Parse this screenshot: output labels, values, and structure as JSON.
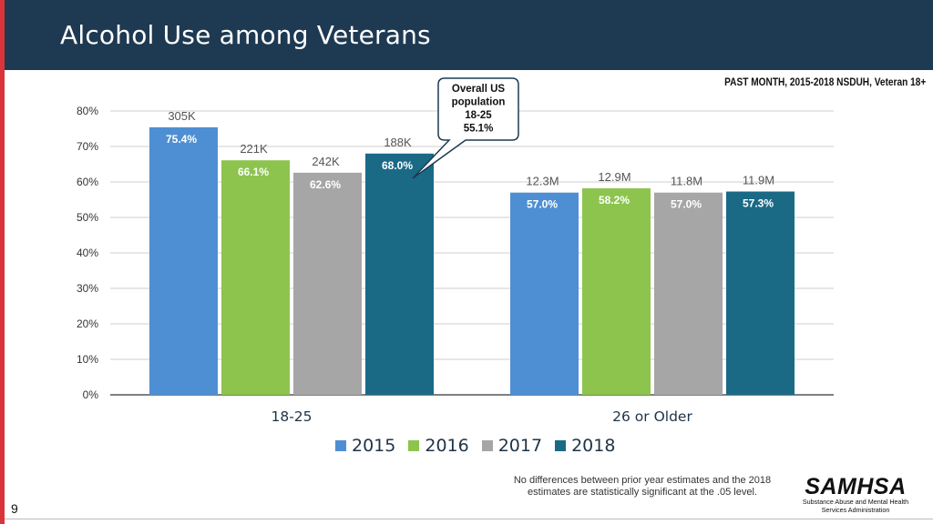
{
  "slide": {
    "title": "Alcohol Use among Veterans",
    "subtitle": "PAST MONTH, 2015-2018  NSDUH, Veteran 18+",
    "page_number": "9",
    "footnote": "No differences between prior year estimates and the 2018 estimates are statistically significant at the .05 level.",
    "logo": {
      "name": "SAMHSA",
      "subtitle": "Substance Abuse and Mental Health Services Administration"
    }
  },
  "callout": {
    "lines": [
      "Overall US",
      "population",
      "18-25",
      "55.1%"
    ]
  },
  "colors": {
    "header": "#1e3a52",
    "accent_red": "#d9343a",
    "series": [
      "#4e8fd3",
      "#8cc44e",
      "#a6a6a6",
      "#1a6a86"
    ]
  },
  "chart_data": {
    "type": "bar",
    "title": "Alcohol Use among Veterans",
    "categories": [
      "18-25",
      "26 or Older"
    ],
    "series": [
      {
        "name": "2015",
        "values": [
          75.4,
          57.0
        ],
        "value_labels": [
          "75.4%",
          "57.0%"
        ],
        "count_labels": [
          "305K",
          "12.3M"
        ]
      },
      {
        "name": "2016",
        "values": [
          66.1,
          58.2
        ],
        "value_labels": [
          "66.1%",
          "58.2%"
        ],
        "count_labels": [
          "221K",
          "12.9M"
        ]
      },
      {
        "name": "2017",
        "values": [
          62.6,
          57.0
        ],
        "value_labels": [
          "62.6%",
          "57.0%"
        ],
        "count_labels": [
          "242K",
          "11.8M"
        ]
      },
      {
        "name": "2018",
        "values": [
          68.0,
          57.3
        ],
        "value_labels": [
          "68.0%",
          "57.3%"
        ],
        "count_labels": [
          "188K",
          "11.9M"
        ]
      }
    ],
    "yticks": [
      "0%",
      "10%",
      "20%",
      "30%",
      "40%",
      "50%",
      "60%",
      "70%",
      "80%"
    ],
    "ylim": [
      0,
      80
    ],
    "grid": true,
    "legend": "bottom-center"
  }
}
